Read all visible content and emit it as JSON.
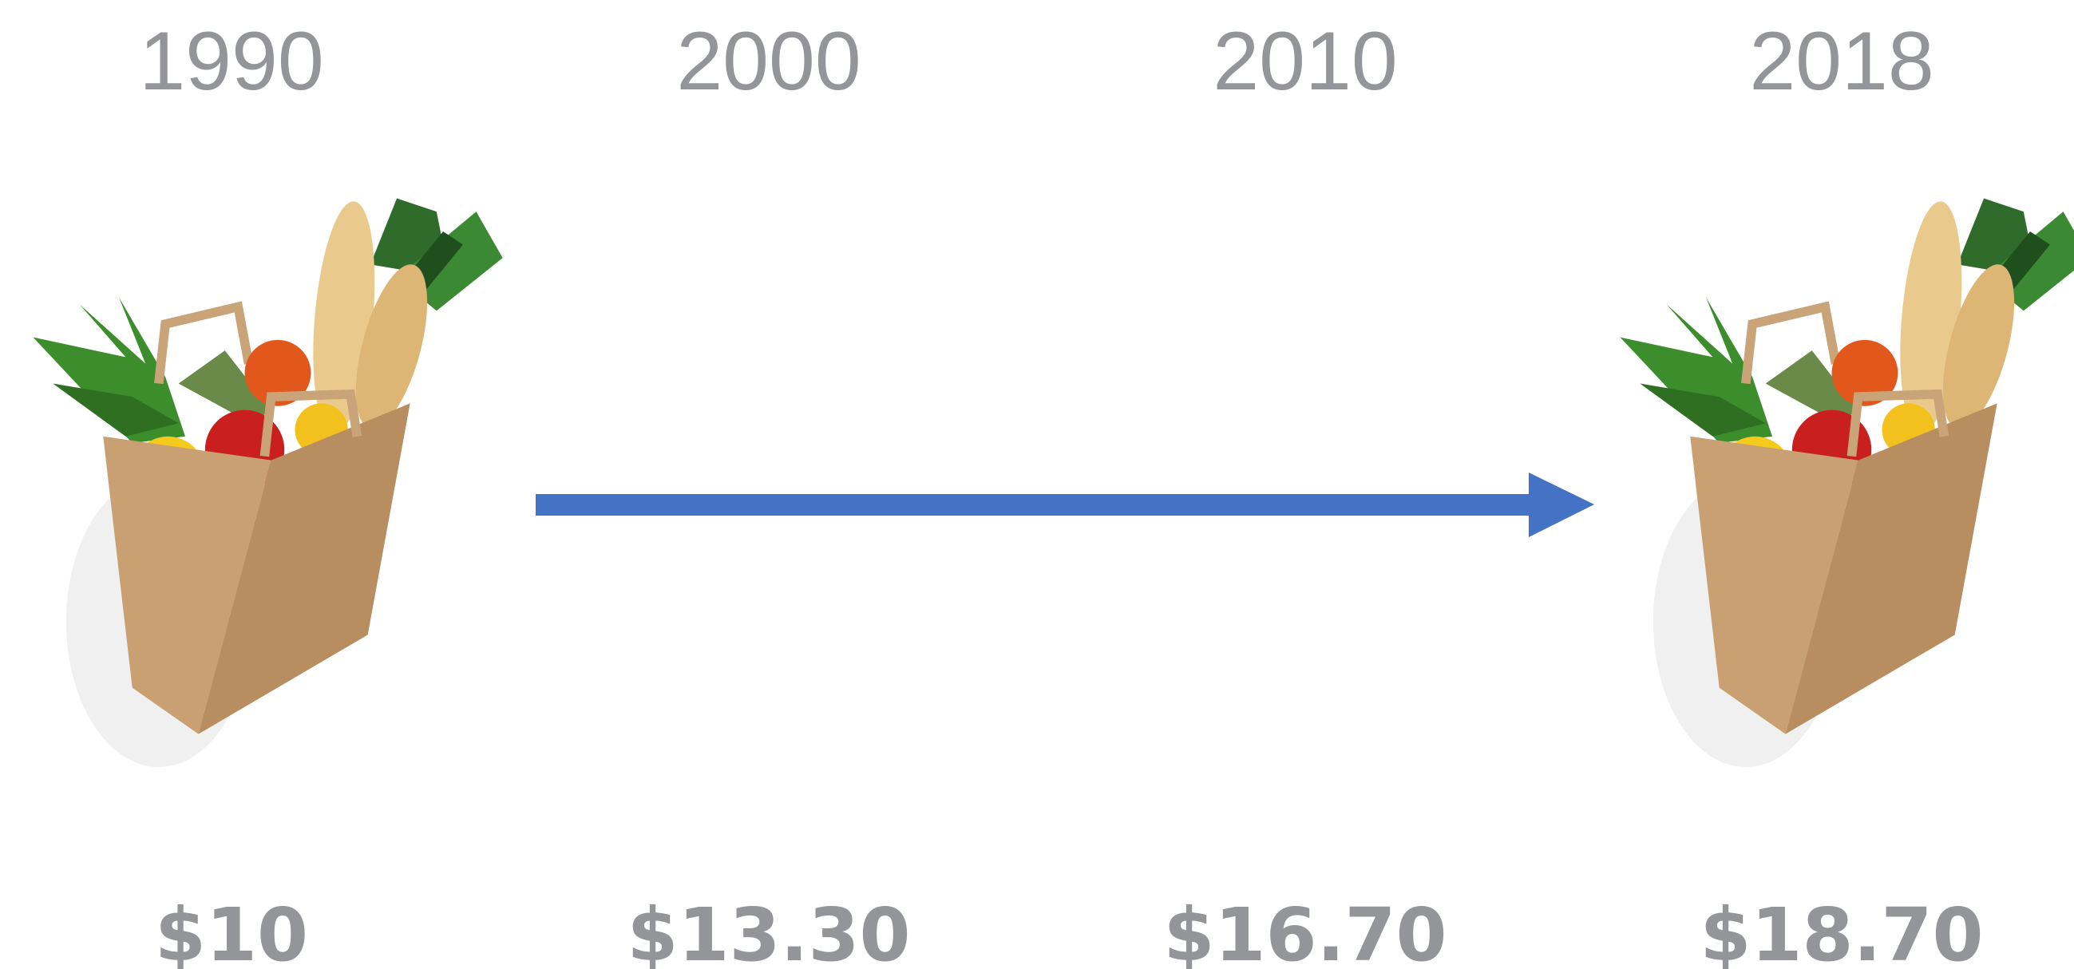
{
  "timeline": [
    {
      "year": "1990",
      "price": "$10"
    },
    {
      "year": "2000",
      "price": "$13.30"
    },
    {
      "year": "2010",
      "price": "$16.70"
    },
    {
      "year": "2018",
      "price": "$18.70"
    }
  ]
}
